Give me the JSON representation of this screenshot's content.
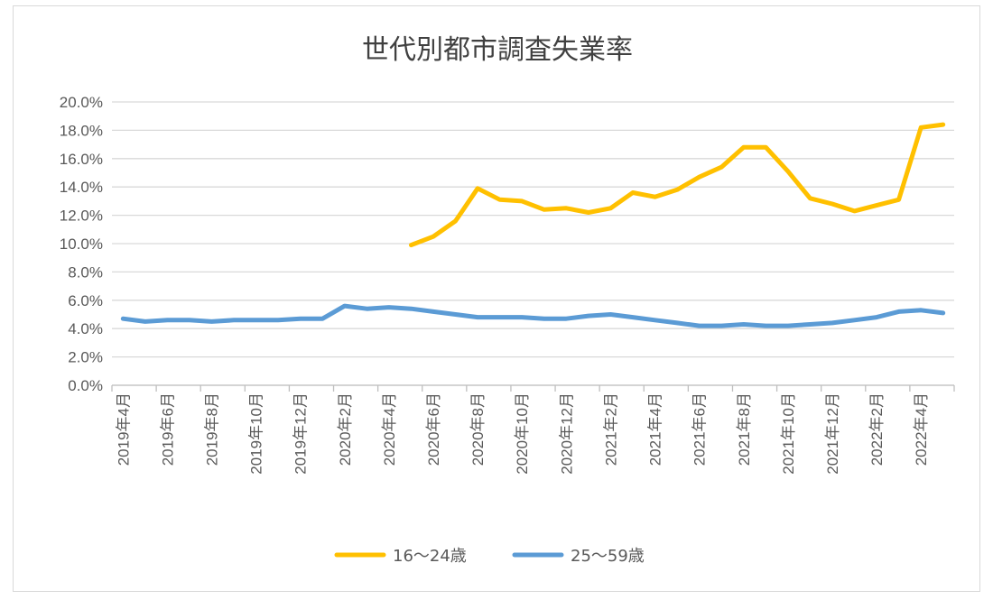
{
  "chart_data": {
    "type": "line",
    "title": "世代別都市調査失業率",
    "xlabel": "",
    "ylabel": "",
    "categories": [
      "2019年4月",
      "2019年5月",
      "2019年6月",
      "2019年7月",
      "2019年8月",
      "2019年9月",
      "2019年10月",
      "2019年11月",
      "2019年12月",
      "2020年1月",
      "2020年2月",
      "2020年3月",
      "2020年4月",
      "2020年5月",
      "2020年6月",
      "2020年7月",
      "2020年8月",
      "2020年9月",
      "2020年10月",
      "2020年11月",
      "2020年12月",
      "2021年1月",
      "2021年2月",
      "2021年3月",
      "2021年4月",
      "2021年5月",
      "2021年6月",
      "2021年7月",
      "2021年8月",
      "2021年9月",
      "2021年10月",
      "2021年11月",
      "2021年12月",
      "2022年1月",
      "2022年2月",
      "2022年3月",
      "2022年4月",
      "2022年5月"
    ],
    "x_tick_labels": [
      "2019年4月",
      "2019年6月",
      "2019年8月",
      "2019年10月",
      "2019年12月",
      "2020年2月",
      "2020年4月",
      "2020年6月",
      "2020年8月",
      "2020年10月",
      "2020年12月",
      "2021年2月",
      "2021年4月",
      "2021年6月",
      "2021年8月",
      "2021年10月",
      "2021年12月",
      "2022年2月",
      "2022年4月"
    ],
    "y_tick_labels": [
      "0.0%",
      "2.0%",
      "4.0%",
      "6.0%",
      "8.0%",
      "10.0%",
      "12.0%",
      "14.0%",
      "16.0%",
      "18.0%",
      "20.0%"
    ],
    "ylim": [
      0,
      20
    ],
    "y_unit": "%",
    "grid": true,
    "legend_position": "bottom",
    "series": [
      {
        "name": "16～24歳",
        "color": "#FFC000",
        "values": [
          null,
          null,
          null,
          null,
          null,
          null,
          null,
          null,
          null,
          null,
          null,
          null,
          null,
          9.9,
          10.5,
          11.6,
          13.9,
          13.1,
          13.0,
          12.4,
          12.5,
          12.2,
          12.5,
          13.6,
          13.3,
          13.8,
          14.7,
          15.4,
          16.8,
          16.8,
          15.1,
          13.2,
          12.8,
          12.3,
          12.7,
          13.1,
          18.2,
          18.4
        ]
      },
      {
        "name": "25～59歳",
        "color": "#5B9BD5",
        "values": [
          4.7,
          4.5,
          4.6,
          4.6,
          4.5,
          4.6,
          4.6,
          4.6,
          4.7,
          4.7,
          5.6,
          5.4,
          5.5,
          5.4,
          5.2,
          5.0,
          4.8,
          4.8,
          4.8,
          4.7,
          4.7,
          4.9,
          5.0,
          4.8,
          4.6,
          4.4,
          4.2,
          4.2,
          4.3,
          4.2,
          4.2,
          4.3,
          4.4,
          4.6,
          4.8,
          5.2,
          5.3,
          5.1
        ]
      }
    ]
  }
}
